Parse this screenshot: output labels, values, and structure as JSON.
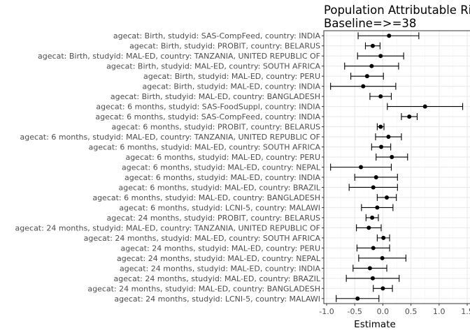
{
  "chart_data": {
    "type": "forest",
    "title_lines": [
      "Population Attributable Ris",
      "Baseline=>=38"
    ],
    "xlabel": "Estimate",
    "xlim": [
      -1.05,
      1.55
    ],
    "xticks": [
      -1.0,
      -0.5,
      0.0,
      0.5,
      1.0,
      1.5
    ],
    "xtick_labels": [
      "-1.0",
      "-0.5",
      "0.0",
      "0.5",
      "1.0",
      "1.5"
    ],
    "grid": true,
    "rows": [
      {
        "label": "agecat: Birth, studyid: SAS-CompFeed, country: INDIA",
        "est": 0.11,
        "lo": -0.44,
        "hi": 0.64
      },
      {
        "label": "agecat: Birth, studyid: PROBIT, country: BELARUS",
        "est": -0.18,
        "lo": -0.31,
        "hi": -0.05
      },
      {
        "label": "agecat: Birth, studyid: MAL-ED, country: TANZANIA, UNITED REPUBLIC OF",
        "est": -0.04,
        "lo": -0.45,
        "hi": 0.37
      },
      {
        "label": "agecat: Birth, studyid: MAL-ED, country: SOUTH AFRICA",
        "est": -0.2,
        "lo": -0.68,
        "hi": 0.28
      },
      {
        "label": "agecat: Birth, studyid: MAL-ED, country: PERU",
        "est": -0.28,
        "lo": -0.57,
        "hi": 0.01
      },
      {
        "label": "agecat: Birth, studyid: MAL-ED, country: INDIA",
        "est": -0.35,
        "lo": -0.93,
        "hi": 0.23
      },
      {
        "label": "agecat: Birth, studyid: MAL-ED, country: BANGLADESH",
        "est": -0.04,
        "lo": -0.23,
        "hi": 0.15
      },
      {
        "label": "agecat: 6 months, studyid: SAS-FoodSuppl, country: INDIA",
        "est": 0.75,
        "lo": 0.08,
        "hi": 1.42
      },
      {
        "label": "agecat: 6 months, studyid: SAS-CompFeed, country: INDIA",
        "est": 0.47,
        "lo": 0.33,
        "hi": 0.61
      },
      {
        "label": "agecat: 6 months, studyid: PROBIT, country: BELARUS",
        "est": -0.04,
        "lo": -0.1,
        "hi": 0.02
      },
      {
        "label": "agecat: 6 months, studyid: MAL-ED, country: TANZANIA, UNITED REPUBLIC OF",
        "est": 0.1,
        "lo": -0.13,
        "hi": 0.33
      },
      {
        "label": "agecat: 6 months, studyid: MAL-ED, country: SOUTH AFRICA",
        "est": -0.03,
        "lo": -0.2,
        "hi": 0.14
      },
      {
        "label": "agecat: 6 months, studyid: MAL-ED, country: PERU",
        "est": 0.16,
        "lo": -0.12,
        "hi": 0.44
      },
      {
        "label": "agecat: 6 months, studyid: MAL-ED, country: NEPAL",
        "est": -0.39,
        "lo": -0.93,
        "hi": 0.15
      },
      {
        "label": "agecat: 6 months, studyid: MAL-ED, country: INDIA",
        "est": -0.12,
        "lo": -0.5,
        "hi": 0.26
      },
      {
        "label": "agecat: 6 months, studyid: MAL-ED, country: BRAZIL",
        "est": -0.17,
        "lo": -0.6,
        "hi": 0.26
      },
      {
        "label": "agecat: 6 months, studyid: MAL-ED, country: BANGLADESH",
        "est": 0.07,
        "lo": -0.1,
        "hi": 0.24
      },
      {
        "label": "agecat: 6 months, studyid: LCNI-5, country: MALAWI",
        "est": -0.1,
        "lo": -0.38,
        "hi": 0.18
      },
      {
        "label": "agecat: 24 months, studyid: PROBIT, country: BELARUS",
        "est": -0.19,
        "lo": -0.3,
        "hi": -0.08
      },
      {
        "label": "agecat: 24 months, studyid: MAL-ED, country: TANZANIA, UNITED REPUBLIC OF",
        "est": -0.25,
        "lo": -0.47,
        "hi": -0.03
      },
      {
        "label": "agecat: 24 months, studyid: MAL-ED, country: SOUTH AFRICA",
        "est": 0.01,
        "lo": -0.1,
        "hi": 0.12
      },
      {
        "label": "agecat: 24 months, studyid: MAL-ED, country: PERU",
        "est": -0.17,
        "lo": -0.46,
        "hi": 0.12
      },
      {
        "label": "agecat: 24 months, studyid: MAL-ED, country: NEPAL",
        "est": -0.01,
        "lo": -0.43,
        "hi": 0.41
      },
      {
        "label": "agecat: 24 months, studyid: MAL-ED, country: INDIA",
        "est": -0.23,
        "lo": -0.53,
        "hi": 0.07
      },
      {
        "label": "agecat: 24 months, studyid: MAL-ED, country: BRAZIL",
        "est": -0.18,
        "lo": -0.65,
        "hi": 0.29
      },
      {
        "label": "agecat: 24 months, studyid: MAL-ED, country: BANGLADESH",
        "est": 0.0,
        "lo": -0.17,
        "hi": 0.17
      },
      {
        "label": "agecat: 24 months, studyid: LCNI-5, country: MALAWI",
        "est": -0.45,
        "lo": -0.83,
        "hi": -0.07
      }
    ],
    "colors": {
      "panel_border": "#333333",
      "grid_major": "#ebebeb",
      "grid_minor": "#f5f5f5",
      "point": "#000000",
      "tick_text": "#4d4d4d"
    }
  }
}
